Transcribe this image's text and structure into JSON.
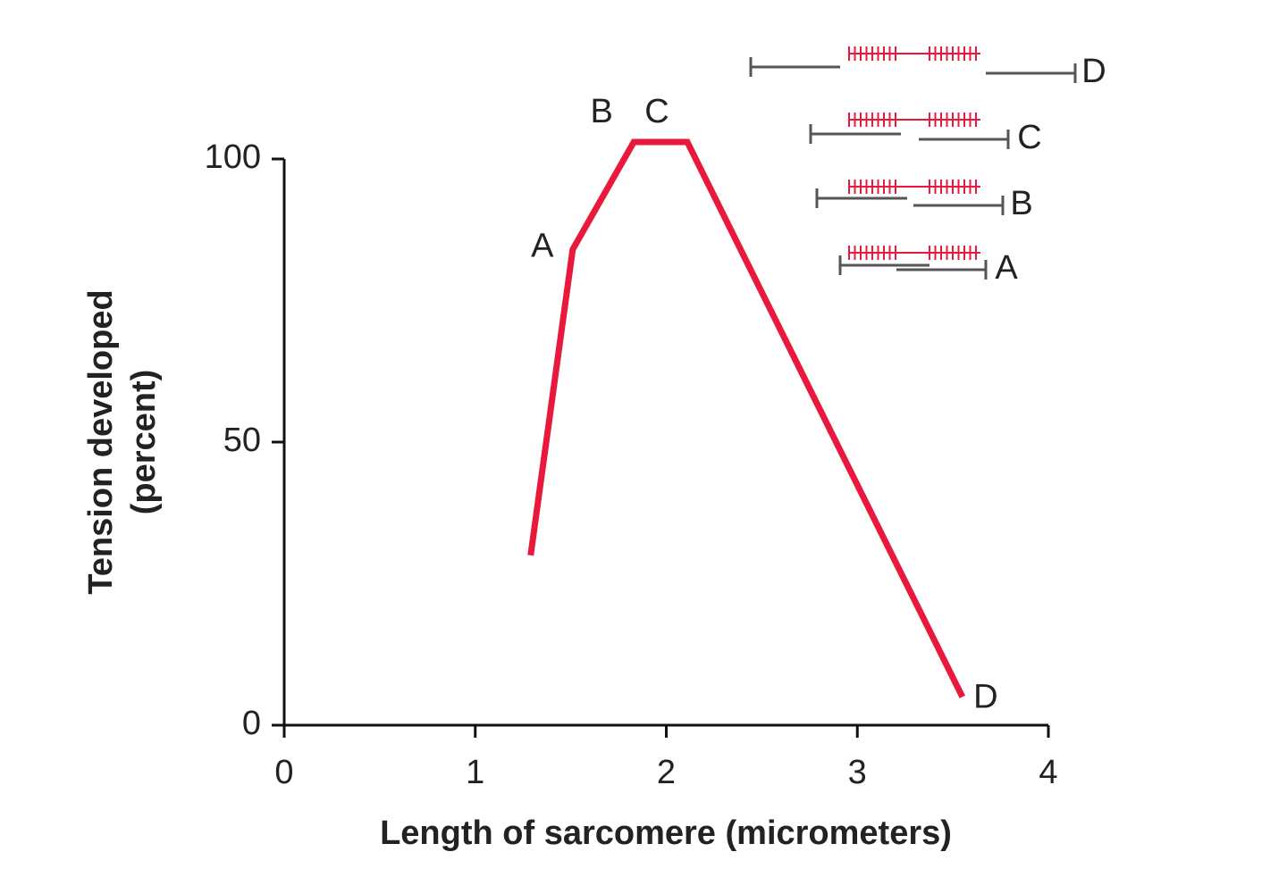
{
  "chart_data": {
    "type": "line",
    "xlabel": "Length of sarcomere (micrometers)",
    "ylabel": [
      "Tension developed",
      "(percent)"
    ],
    "x": [
      1.29,
      1.51,
      1.83,
      2.11,
      3.55
    ],
    "series": [
      {
        "color": "#e8193c",
        "values": [
          30,
          84,
          103,
          103,
          5
        ]
      }
    ],
    "point_labels": [
      null,
      "A",
      "B",
      "C",
      "D"
    ],
    "sarcomere_labels": [
      "D",
      "C",
      "B",
      "A"
    ],
    "xlim": [
      0,
      4
    ],
    "xticks": [
      0,
      1,
      2,
      3,
      4
    ],
    "ylim": [
      0,
      100
    ],
    "yticks": [
      0,
      50,
      100
    ]
  }
}
